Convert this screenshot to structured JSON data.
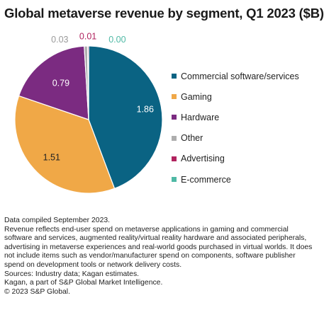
{
  "title": "Global metaverse revenue by segment, Q1 2023 ($B)",
  "chart_data": {
    "type": "pie",
    "title": "Global metaverse revenue by segment, Q1 2023 ($B)",
    "unit": "$B",
    "slices": [
      {
        "label": "Commercial software/services",
        "value": 1.86,
        "color": "#0a6383"
      },
      {
        "label": "Gaming",
        "value": 1.51,
        "color": "#f0a847"
      },
      {
        "label": "Hardware",
        "value": 0.79,
        "color": "#7b2b81"
      },
      {
        "label": "Other",
        "value": 0.03,
        "color": "#adadad"
      },
      {
        "label": "Advertising",
        "value": 0.01,
        "color": "#b1235f"
      },
      {
        "label": "E-commerce",
        "value": 0.0,
        "color": "#4fb9a5"
      }
    ],
    "data_labels": [
      "1.86",
      "1.51",
      "0.79",
      "0.03",
      "0.01",
      "0.00"
    ],
    "legend_position": "right"
  },
  "notes": [
    "Data compiled September 2023.",
    "Revenue reflects end-user spend on metaverse applications in gaming and commercial software and services, augmented reality/virtual reality hardware and associated peripherals, advertising in metaverse experiences and real-world goods purchased in virtual worlds. It does not include items such as vendor/manufacturer spend on components, software publisher spend on development tools or network delivery costs.",
    "Sources: Industry data; Kagan estimates.",
    "Kagan, a part of S&P Global Market Intelligence.",
    "© 2023 S&P Global."
  ]
}
